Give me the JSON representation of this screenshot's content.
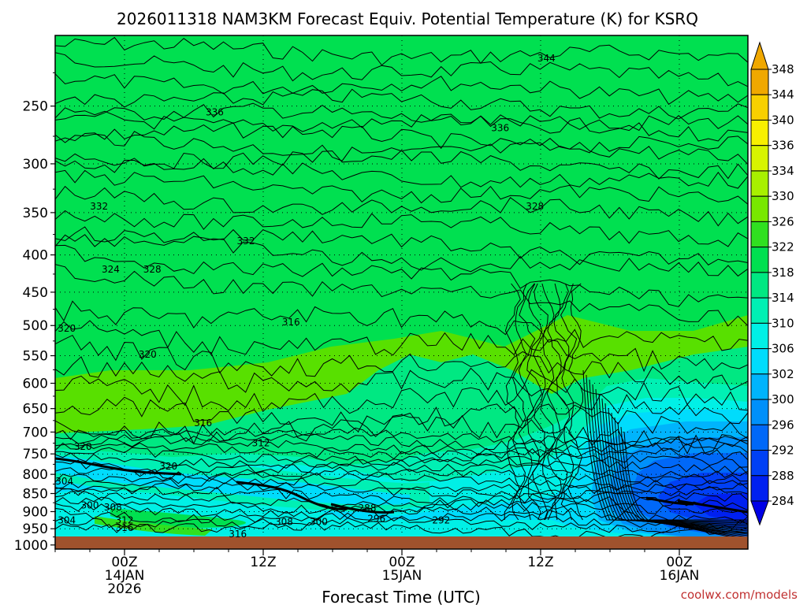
{
  "chart_data": {
    "type": "heatmap",
    "title": "2026011318 NAM3KM Forecast Equiv. Potential Temperature (K) for KSRQ",
    "xlabel": "Forecast Time (UTC)",
    "ylabel": "",
    "credit": "coolwx.com/models",
    "y_axis": {
      "ticks": [
        "250",
        "300",
        "350",
        "400",
        "450",
        "500",
        "550",
        "600",
        "650",
        "700",
        "750",
        "800",
        "850",
        "900",
        "950",
        "1000"
      ],
      "range": [
        1013,
        200
      ]
    },
    "x_axis": {
      "ticks": [
        {
          "line1": "00Z",
          "line2": "14JAN",
          "line3": "2026"
        },
        {
          "line1": "12Z",
          "line2": "",
          "line3": ""
        },
        {
          "line1": "00Z",
          "line2": "15JAN",
          "line3": ""
        },
        {
          "line1": "12Z",
          "line2": "",
          "line3": ""
        },
        {
          "line1": "00Z",
          "line2": "16JAN",
          "line3": ""
        }
      ]
    },
    "colorbar": {
      "levels": [
        "284",
        "288",
        "292",
        "296",
        "300",
        "302",
        "306",
        "310",
        "314",
        "318",
        "322",
        "326",
        "330",
        "334",
        "336",
        "340",
        "344",
        "348"
      ],
      "colors": [
        "#0000e6",
        "#0020f0",
        "#0040f5",
        "#0068f8",
        "#0090fa",
        "#00b4fc",
        "#00dcfc",
        "#00f0e6",
        "#00f0b4",
        "#00e882",
        "#00e050",
        "#30e020",
        "#78e800",
        "#a8f000",
        "#d8f400",
        "#f8f000",
        "#f8d000",
        "#f0a800"
      ]
    },
    "contour_labels": [
      {
        "text": "336",
        "hour": -14,
        "p": 212
      },
      {
        "text": "344",
        "hour": 36.5,
        "p": 215
      },
      {
        "text": "336",
        "hour": 7.8,
        "p": 255
      },
      {
        "text": "336",
        "hour": 32.5,
        "p": 268
      },
      {
        "text": "332",
        "hour": -2.2,
        "p": 343
      },
      {
        "text": "328",
        "hour": 35.5,
        "p": 343
      },
      {
        "text": "332",
        "hour": 10.5,
        "p": 383
      },
      {
        "text": "324",
        "hour": -7.5,
        "p": 408
      },
      {
        "text": "324",
        "hour": -1.2,
        "p": 419
      },
      {
        "text": "328",
        "hour": 2.4,
        "p": 419
      },
      {
        "text": "320",
        "hour": -5.0,
        "p": 505
      },
      {
        "text": "316",
        "hour": 14.4,
        "p": 495
      },
      {
        "text": "320",
        "hour": 2.0,
        "p": 548
      },
      {
        "text": "320",
        "hour": -8.2,
        "p": 618
      },
      {
        "text": "316",
        "hour": 6.8,
        "p": 680
      },
      {
        "text": "312",
        "hour": 11.8,
        "p": 725
      },
      {
        "text": "312",
        "hour": -19.4,
        "p": 735
      },
      {
        "text": "316",
        "hour": -17.4,
        "p": 728
      },
      {
        "text": "320",
        "hour": -3.6,
        "p": 733
      },
      {
        "text": "320",
        "hour": 3.8,
        "p": 780
      },
      {
        "text": "308",
        "hour": -10.5,
        "p": 798
      },
      {
        "text": "304",
        "hour": -5.2,
        "p": 818
      },
      {
        "text": "308",
        "hour": -24.0,
        "p": 818
      },
      {
        "text": "320",
        "hour": -22.0,
        "p": 828
      },
      {
        "text": "308",
        "hour": -19.6,
        "p": 834
      },
      {
        "text": "316",
        "hour": -17.0,
        "p": 832
      },
      {
        "text": "312",
        "hour": -13.2,
        "p": 864
      },
      {
        "text": "300",
        "hour": -3.0,
        "p": 882
      },
      {
        "text": "308",
        "hour": -1.0,
        "p": 888
      },
      {
        "text": "312",
        "hour": 0.0,
        "p": 925
      },
      {
        "text": "324",
        "hour": -22.8,
        "p": 895
      },
      {
        "text": "304",
        "hour": -5.0,
        "p": 925
      },
      {
        "text": "320",
        "hour": -11.4,
        "p": 935
      },
      {
        "text": "316",
        "hour": 0.0,
        "p": 947
      },
      {
        "text": "316",
        "hour": 9.8,
        "p": 966
      },
      {
        "text": "308",
        "hour": 13.8,
        "p": 930
      },
      {
        "text": "300",
        "hour": 16.8,
        "p": 930
      },
      {
        "text": "288",
        "hour": 21.0,
        "p": 890
      },
      {
        "text": "296",
        "hour": 21.8,
        "p": 920
      },
      {
        "text": "292",
        "hour": 27.4,
        "p": 925
      },
      {
        "text": "324",
        "hour": -15.8,
        "p": 980
      }
    ]
  }
}
